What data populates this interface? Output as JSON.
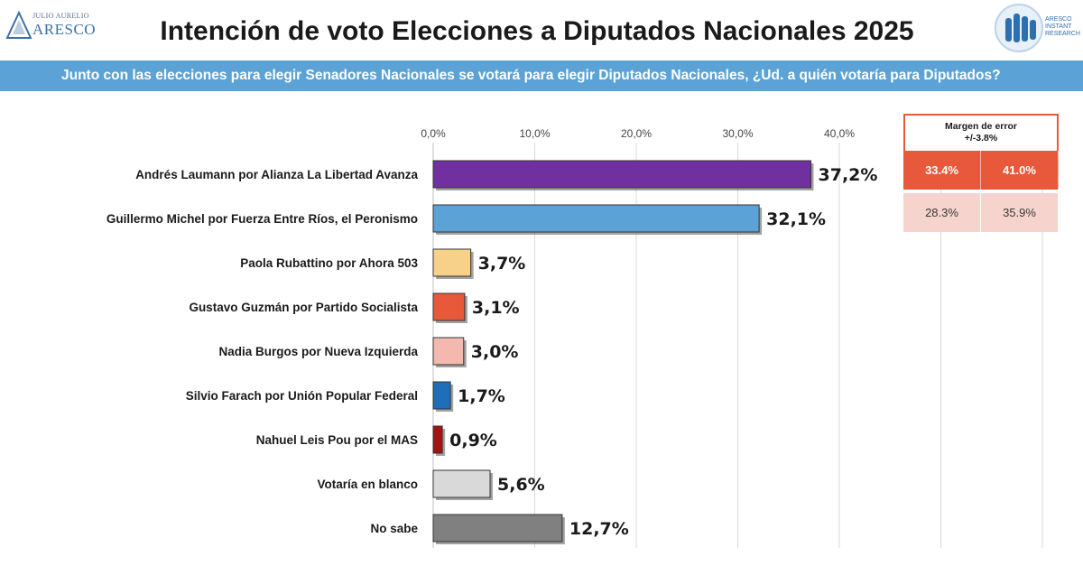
{
  "header": {
    "title": "Intención de voto Elecciones a Diputados Nacionales 2025",
    "subtitle": "Junto con las elecciones para elegir Senadores Nacionales se votará para elegir Diputados Nacionales, ¿Ud. a quién votaría para Diputados?",
    "logo_left_small": "JULIO AURELIO",
    "logo_left_big": "ARESCO",
    "logo_right_lines": [
      "ARESCO",
      "INSTANT",
      "RESEARCH"
    ]
  },
  "margin_table": {
    "header_line1": "Margen de error",
    "header_line2": "+/-3.8%",
    "rows": [
      [
        "33.4%",
        "41.0%"
      ],
      [
        "28.3%",
        "35.9%"
      ]
    ]
  },
  "colors": {
    "subtitle_bar": "#5ba3d6",
    "margin_accent": "#e8583a"
  },
  "chart_data": {
    "type": "bar",
    "orientation": "horizontal",
    "categories": [
      "Andrés Laumann por Alianza La Libertad Avanza",
      "Guillermo Michel por Fuerza Entre Ríos, el Peronismo",
      "Paola Rubattino por Ahora 503",
      "Gustavo Guzmán por Partido Socialista",
      "Nadia Burgos por Nueva Izquierda",
      "Silvio Farach por Unión Popular Federal",
      "Nahuel Leis Pou por el MAS",
      "Votaría en blanco",
      "No sabe"
    ],
    "values": [
      37.2,
      32.1,
      3.7,
      3.1,
      3.0,
      1.7,
      0.9,
      5.6,
      12.7
    ],
    "value_labels": [
      "37,2%",
      "32,1%",
      "3,7%",
      "3,1%",
      "3,0%",
      "1,7%",
      "0,9%",
      "5,6%",
      "12,7%"
    ],
    "bar_colors": [
      "#7030a0",
      "#5ba3d6",
      "#f7d08a",
      "#e8583a",
      "#f4b8ae",
      "#1f6fb8",
      "#a31515",
      "#d9d9d9",
      "#808080"
    ],
    "x_ticks": [
      0,
      10,
      20,
      30,
      40
    ],
    "x_tick_labels": [
      "0,0%",
      "10,0%",
      "20,0%",
      "30,0%",
      "40,0%"
    ],
    "xlim": [
      0,
      40
    ],
    "grid": true,
    "title": "",
    "xlabel": "",
    "ylabel": ""
  }
}
